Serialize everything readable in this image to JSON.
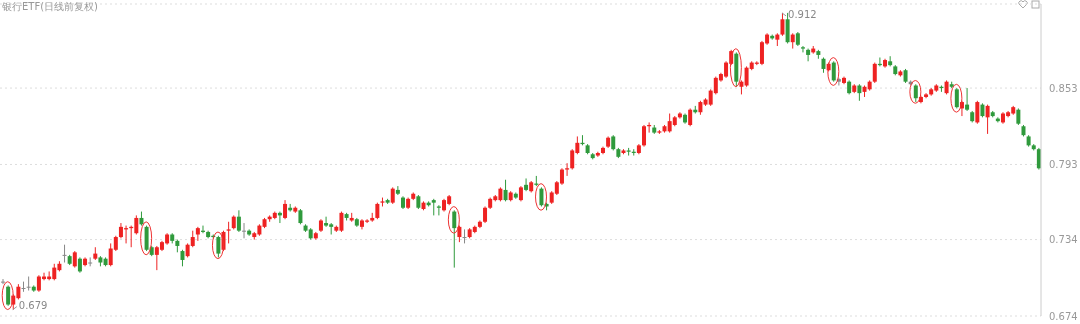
{
  "chart_data": {
    "type": "candlestick",
    "title": "银行ETF(日线前复权)",
    "categories": [
      null,
      null,
      null,
      null,
      null,
      null,
      null,
      null,
      null,
      null,
      null,
      null,
      null,
      null,
      null,
      null,
      null,
      null,
      null,
      null,
      null,
      null,
      null,
      null,
      null,
      null,
      null,
      null,
      null,
      null,
      null,
      null,
      null,
      null,
      null,
      null,
      null,
      null,
      null,
      null,
      null,
      null,
      null,
      null,
      null,
      null,
      null,
      null,
      null,
      null,
      null,
      null,
      null,
      null,
      null,
      null,
      null,
      null,
      null,
      null,
      null,
      null,
      null,
      null,
      null,
      null,
      null,
      null,
      null,
      null,
      null,
      null,
      null,
      null,
      null,
      null,
      null,
      null,
      null,
      null,
      null,
      null,
      null,
      null,
      null,
      null,
      null,
      null,
      null,
      null,
      null,
      null,
      null,
      null,
      null,
      null,
      null,
      null,
      null,
      null,
      null,
      null,
      null,
      null,
      null,
      null,
      null,
      null,
      null,
      null,
      null,
      null,
      null,
      null,
      null,
      null,
      null,
      null,
      null,
      null,
      null,
      null,
      null,
      null,
      null,
      null,
      null,
      null,
      null,
      null,
      null,
      null,
      null,
      null,
      null,
      null,
      null,
      null,
      null,
      null,
      null,
      null,
      null,
      null,
      null,
      null,
      null,
      null,
      null,
      null,
      null,
      null,
      null,
      null,
      null,
      null,
      null,
      null,
      null,
      null,
      null,
      null,
      null,
      null,
      null,
      null,
      null,
      null,
      null,
      null,
      null,
      null,
      null,
      null,
      null,
      null,
      null,
      null,
      null,
      null,
      null,
      null,
      null,
      null,
      null,
      null,
      null,
      null,
      null,
      null,
      null,
      null,
      null,
      null,
      null,
      null,
      null,
      null,
      null,
      null,
      null,
      null,
      null
    ],
    "ohlc": [
      [
        0.701,
        0.703,
        0.699,
        0.701
      ],
      [
        0.697,
        0.698,
        0.682,
        0.683
      ],
      [
        0.683,
        0.691,
        0.679,
        0.69
      ],
      [
        0.688,
        0.699,
        0.687,
        0.697
      ],
      [
        0.696,
        0.701,
        0.693,
        0.696
      ],
      [
        0.697,
        0.705,
        0.694,
        0.697
      ],
      [
        0.697,
        0.698,
        0.693,
        0.694
      ],
      [
        0.694,
        0.706,
        0.693,
        0.705
      ],
      [
        0.703,
        0.708,
        0.702,
        0.705
      ],
      [
        0.703,
        0.709,
        0.702,
        0.705
      ],
      [
        0.703,
        0.715,
        0.702,
        0.712
      ],
      [
        0.71,
        0.717,
        0.709,
        0.715
      ],
      [
        0.722,
        0.73,
        0.716,
        0.722
      ],
      [
        0.721,
        0.722,
        0.714,
        0.715
      ],
      [
        0.713,
        0.725,
        0.712,
        0.724
      ],
      [
        0.719,
        0.72,
        0.708,
        0.709
      ],
      [
        0.714,
        0.72,
        0.713,
        0.719
      ],
      [
        0.716,
        0.72,
        0.713,
        0.716
      ],
      [
        0.719,
        0.728,
        0.718,
        0.723
      ],
      [
        0.72,
        0.721,
        0.713,
        0.716
      ],
      [
        0.719,
        0.72,
        0.713,
        0.714
      ],
      [
        0.714,
        0.731,
        0.713,
        0.727
      ],
      [
        0.726,
        0.737,
        0.725,
        0.736
      ],
      [
        0.736,
        0.747,
        0.735,
        0.744
      ],
      [
        0.742,
        0.745,
        0.731,
        0.743
      ],
      [
        0.743,
        0.745,
        0.728,
        0.744
      ],
      [
        0.739,
        0.753,
        0.738,
        0.751
      ],
      [
        0.751,
        0.756,
        0.745,
        0.746
      ],
      [
        0.744,
        0.745,
        0.725,
        0.726
      ],
      [
        0.728,
        0.729,
        0.721,
        0.722
      ],
      [
        0.722,
        0.729,
        0.71,
        0.728
      ],
      [
        0.726,
        0.733,
        0.725,
        0.732
      ],
      [
        0.731,
        0.739,
        0.73,
        0.738
      ],
      [
        0.738,
        0.739,
        0.731,
        0.733
      ],
      [
        0.733,
        0.734,
        0.724,
        0.729
      ],
      [
        0.725,
        0.726,
        0.713,
        0.718
      ],
      [
        0.721,
        0.731,
        0.72,
        0.73
      ],
      [
        0.729,
        0.741,
        0.728,
        0.736
      ],
      [
        0.738,
        0.744,
        0.733,
        0.743
      ],
      [
        0.741,
        0.745,
        0.739,
        0.74
      ],
      [
        0.74,
        0.741,
        0.735,
        0.736
      ],
      [
        0.737,
        0.738,
        0.735,
        0.736
      ],
      [
        0.736,
        0.737,
        0.72,
        0.723
      ],
      [
        0.726,
        0.741,
        0.725,
        0.74
      ],
      [
        0.741,
        0.748,
        0.731,
        0.742
      ],
      [
        0.743,
        0.753,
        0.742,
        0.752
      ],
      [
        0.752,
        0.757,
        0.74,
        0.741
      ],
      [
        0.741,
        0.747,
        0.735,
        0.741
      ],
      [
        0.741,
        0.742,
        0.737,
        0.738
      ],
      [
        0.736,
        0.74,
        0.734,
        0.739
      ],
      [
        0.738,
        0.746,
        0.737,
        0.745
      ],
      [
        0.744,
        0.751,
        0.743,
        0.75
      ],
      [
        0.75,
        0.753,
        0.748,
        0.752
      ],
      [
        0.751,
        0.756,
        0.75,
        0.755
      ],
      [
        0.755,
        0.756,
        0.747,
        0.753
      ],
      [
        0.751,
        0.765,
        0.75,
        0.762
      ],
      [
        0.759,
        0.762,
        0.756,
        0.757
      ],
      [
        0.756,
        0.76,
        0.755,
        0.759
      ],
      [
        0.757,
        0.758,
        0.746,
        0.747
      ],
      [
        0.745,
        0.746,
        0.74,
        0.741
      ],
      [
        0.742,
        0.743,
        0.734,
        0.735
      ],
      [
        0.735,
        0.74,
        0.734,
        0.739
      ],
      [
        0.741,
        0.75,
        0.74,
        0.749
      ],
      [
        0.747,
        0.752,
        0.744,
        0.745
      ],
      [
        0.746,
        0.747,
        0.738,
        0.744
      ],
      [
        0.741,
        0.745,
        0.74,
        0.744
      ],
      [
        0.741,
        0.756,
        0.74,
        0.755
      ],
      [
        0.754,
        0.755,
        0.749,
        0.751
      ],
      [
        0.749,
        0.755,
        0.748,
        0.751
      ],
      [
        0.75,
        0.751,
        0.744,
        0.745
      ],
      [
        0.744,
        0.75,
        0.742,
        0.749
      ],
      [
        0.748,
        0.75,
        0.747,
        0.749
      ],
      [
        0.749,
        0.755,
        0.748,
        0.751
      ],
      [
        0.751,
        0.763,
        0.75,
        0.762
      ],
      [
        0.763,
        0.767,
        0.76,
        0.764
      ],
      [
        0.765,
        0.766,
        0.762,
        0.763
      ],
      [
        0.763,
        0.775,
        0.762,
        0.774
      ],
      [
        0.773,
        0.776,
        0.769,
        0.77
      ],
      [
        0.767,
        0.768,
        0.758,
        0.759
      ],
      [
        0.759,
        0.767,
        0.758,
        0.766
      ],
      [
        0.766,
        0.771,
        0.765,
        0.77
      ],
      [
        0.768,
        0.769,
        0.758,
        0.759
      ],
      [
        0.758,
        0.764,
        0.757,
        0.763
      ],
      [
        0.763,
        0.764,
        0.76,
        0.761
      ],
      [
        0.765,
        0.766,
        0.753,
        0.763
      ],
      [
        0.76,
        0.761,
        0.753,
        0.759
      ],
      [
        0.757,
        0.766,
        0.756,
        0.765
      ],
      [
        0.762,
        0.769,
        0.761,
        0.768
      ],
      [
        0.756,
        0.757,
        0.712,
        0.743
      ],
      [
        0.736,
        0.745,
        0.732,
        0.744
      ],
      [
        0.736,
        0.742,
        0.731,
        0.736
      ],
      [
        0.736,
        0.743,
        0.735,
        0.742
      ],
      [
        0.74,
        0.745,
        0.739,
        0.744
      ],
      [
        0.744,
        0.749,
        0.743,
        0.748
      ],
      [
        0.748,
        0.76,
        0.747,
        0.759
      ],
      [
        0.759,
        0.767,
        0.758,
        0.766
      ],
      [
        0.765,
        0.769,
        0.764,
        0.768
      ],
      [
        0.765,
        0.775,
        0.764,
        0.774
      ],
      [
        0.773,
        0.781,
        0.764,
        0.765
      ],
      [
        0.765,
        0.772,
        0.764,
        0.771
      ],
      [
        0.77,
        0.771,
        0.766,
        0.767
      ],
      [
        0.765,
        0.776,
        0.764,
        0.775
      ],
      [
        0.777,
        0.782,
        0.772,
        0.773
      ],
      [
        0.772,
        0.78,
        0.771,
        0.779
      ],
      [
        0.778,
        0.784,
        0.776,
        0.777
      ],
      [
        0.774,
        0.775,
        0.76,
        0.761
      ],
      [
        0.762,
        0.763,
        0.757,
        0.76
      ],
      [
        0.763,
        0.772,
        0.762,
        0.771
      ],
      [
        0.77,
        0.78,
        0.769,
        0.779
      ],
      [
        0.778,
        0.79,
        0.777,
        0.789
      ],
      [
        0.789,
        0.794,
        0.784,
        0.79
      ],
      [
        0.79,
        0.805,
        0.789,
        0.804
      ],
      [
        0.802,
        0.815,
        0.801,
        0.81
      ],
      [
        0.81,
        0.816,
        0.808,
        0.809
      ],
      [
        0.808,
        0.809,
        0.801,
        0.802
      ],
      [
        0.801,
        0.802,
        0.797,
        0.798
      ],
      [
        0.8,
        0.803,
        0.799,
        0.802
      ],
      [
        0.802,
        0.807,
        0.801,
        0.806
      ],
      [
        0.807,
        0.815,
        0.806,
        0.814
      ],
      [
        0.815,
        0.816,
        0.804,
        0.805
      ],
      [
        0.805,
        0.806,
        0.798,
        0.799
      ],
      [
        0.802,
        0.805,
        0.801,
        0.804
      ],
      [
        0.804,
        0.806,
        0.8,
        0.803
      ],
      [
        0.803,
        0.805,
        0.8,
        0.802
      ],
      [
        0.802,
        0.809,
        0.801,
        0.808
      ],
      [
        0.808,
        0.824,
        0.807,
        0.823
      ],
      [
        0.823,
        0.826,
        0.818,
        0.824
      ],
      [
        0.822,
        0.824,
        0.817,
        0.818
      ],
      [
        0.818,
        0.82,
        0.817,
        0.819
      ],
      [
        0.819,
        0.824,
        0.818,
        0.823
      ],
      [
        0.819,
        0.833,
        0.818,
        0.827
      ],
      [
        0.824,
        0.831,
        0.823,
        0.83
      ],
      [
        0.83,
        0.834,
        0.829,
        0.833
      ],
      [
        0.832,
        0.833,
        0.825,
        0.826
      ],
      [
        0.824,
        0.837,
        0.823,
        0.836
      ],
      [
        0.836,
        0.839,
        0.833,
        0.834
      ],
      [
        0.834,
        0.843,
        0.832,
        0.842
      ],
      [
        0.84,
        0.845,
        0.839,
        0.844
      ],
      [
        0.84,
        0.852,
        0.839,
        0.851
      ],
      [
        0.849,
        0.862,
        0.848,
        0.861
      ],
      [
        0.859,
        0.865,
        0.858,
        0.864
      ],
      [
        0.862,
        0.874,
        0.861,
        0.873
      ],
      [
        0.872,
        0.883,
        0.871,
        0.882
      ],
      [
        0.88,
        0.881,
        0.854,
        0.858
      ],
      [
        0.854,
        0.859,
        0.848,
        0.858
      ],
      [
        0.855,
        0.87,
        0.854,
        0.869
      ],
      [
        0.868,
        0.874,
        0.867,
        0.873
      ],
      [
        0.872,
        0.874,
        0.871,
        0.873
      ],
      [
        0.872,
        0.89,
        0.871,
        0.889
      ],
      [
        0.888,
        0.896,
        0.887,
        0.895
      ],
      [
        0.894,
        0.895,
        0.891,
        0.892
      ],
      [
        0.891,
        0.896,
        0.886,
        0.895
      ],
      [
        0.895,
        0.912,
        0.894,
        0.907
      ],
      [
        0.907,
        0.912,
        0.888,
        0.889
      ],
      [
        0.889,
        0.896,
        0.884,
        0.895
      ],
      [
        0.896,
        0.897,
        0.886,
        0.887
      ],
      [
        0.885,
        0.886,
        0.881,
        0.884
      ],
      [
        0.883,
        0.884,
        0.874,
        0.879
      ],
      [
        0.881,
        0.886,
        0.88,
        0.884
      ],
      [
        0.882,
        0.883,
        0.876,
        0.879
      ],
      [
        0.876,
        0.877,
        0.865,
        0.868
      ],
      [
        0.867,
        0.873,
        0.866,
        0.872
      ],
      [
        0.873,
        0.874,
        0.858,
        0.859
      ],
      [
        0.86,
        0.861,
        0.855,
        0.858
      ],
      [
        0.857,
        0.862,
        0.856,
        0.861
      ],
      [
        0.858,
        0.859,
        0.848,
        0.849
      ],
      [
        0.85,
        0.856,
        0.849,
        0.855
      ],
      [
        0.855,
        0.856,
        0.843,
        0.849
      ],
      [
        0.85,
        0.855,
        0.846,
        0.854
      ],
      [
        0.852,
        0.859,
        0.851,
        0.858
      ],
      [
        0.858,
        0.873,
        0.857,
        0.872
      ],
      [
        0.872,
        0.877,
        0.87,
        0.871
      ],
      [
        0.87,
        0.876,
        0.869,
        0.875
      ],
      [
        0.874,
        0.878,
        0.87,
        0.871
      ],
      [
        0.87,
        0.871,
        0.863,
        0.864
      ],
      [
        0.863,
        0.867,
        0.862,
        0.866
      ],
      [
        0.867,
        0.868,
        0.857,
        0.858
      ],
      [
        0.858,
        0.859,
        0.855,
        0.856
      ],
      [
        0.855,
        0.856,
        0.842,
        0.845
      ],
      [
        0.842,
        0.847,
        0.841,
        0.846
      ],
      [
        0.846,
        0.849,
        0.845,
        0.848
      ],
      [
        0.848,
        0.853,
        0.847,
        0.852
      ],
      [
        0.851,
        0.856,
        0.85,
        0.855
      ],
      [
        0.854,
        0.855,
        0.85,
        0.853
      ],
      [
        0.849,
        0.859,
        0.848,
        0.858
      ],
      [
        0.856,
        0.858,
        0.853,
        0.854
      ],
      [
        0.852,
        0.853,
        0.837,
        0.838
      ],
      [
        0.837,
        0.843,
        0.831,
        0.842
      ],
      [
        0.84,
        0.853,
        0.835,
        0.836
      ],
      [
        0.834,
        0.835,
        0.826,
        0.827
      ],
      [
        0.826,
        0.843,
        0.825,
        0.842
      ],
      [
        0.84,
        0.841,
        0.83,
        0.831
      ],
      [
        0.83,
        0.84,
        0.817,
        0.839
      ],
      [
        0.834,
        0.835,
        0.83,
        0.831
      ],
      [
        0.829,
        0.83,
        0.826,
        0.827
      ],
      [
        0.826,
        0.834,
        0.825,
        0.833
      ],
      [
        0.831,
        0.835,
        0.83,
        0.834
      ],
      [
        0.833,
        0.839,
        0.832,
        0.838
      ],
      [
        0.836,
        0.837,
        0.824,
        0.825
      ],
      [
        0.823,
        0.824,
        0.815,
        0.816
      ],
      [
        0.815,
        0.816,
        0.807,
        0.808
      ],
      [
        0.808,
        0.809,
        0.804,
        0.805
      ],
      [
        0.805,
        0.806,
        0.789,
        0.79
      ]
    ],
    "colors": [
      "#888888",
      "#2f9a3c",
      "#ee2222",
      "#ee2222",
      "#888888",
      "#888888",
      "#2f9a3c",
      "#ee2222",
      "#ee2222",
      "#ee2222",
      "#ee2222",
      "#ee2222",
      "#888888",
      "#2f9a3c",
      "#ee2222",
      "#2f9a3c",
      "#ee2222",
      "#888888",
      "#ee2222",
      "#2f9a3c",
      "#2f9a3c",
      "#ee2222",
      "#ee2222",
      "#ee2222",
      "#ee2222",
      "#ee2222",
      "#ee2222",
      "#2f9a3c",
      "#2f9a3c",
      "#2f9a3c",
      "#ee2222",
      "#ee2222",
      "#ee2222",
      "#2f9a3c",
      "#2f9a3c",
      "#2f9a3c",
      "#ee2222",
      "#ee2222",
      "#ee2222",
      "#2f9a3c",
      "#2f9a3c",
      "#2f9a3c",
      "#2f9a3c",
      "#ee2222",
      "#ee2222",
      "#ee2222",
      "#2f9a3c",
      "#888888",
      "#2f9a3c",
      "#ee2222",
      "#ee2222",
      "#ee2222",
      "#ee2222",
      "#ee2222",
      "#2f9a3c",
      "#ee2222",
      "#2f9a3c",
      "#ee2222",
      "#2f9a3c",
      "#2f9a3c",
      "#2f9a3c",
      "#ee2222",
      "#ee2222",
      "#2f9a3c",
      "#2f9a3c",
      "#ee2222",
      "#ee2222",
      "#2f9a3c",
      "#ee2222",
      "#2f9a3c",
      "#ee2222",
      "#ee2222",
      "#ee2222",
      "#ee2222",
      "#ee2222",
      "#2f9a3c",
      "#ee2222",
      "#2f9a3c",
      "#2f9a3c",
      "#ee2222",
      "#ee2222",
      "#2f9a3c",
      "#ee2222",
      "#2f9a3c",
      "#2f9a3c",
      "#2f9a3c",
      "#ee2222",
      "#ee2222",
      "#2f9a3c",
      "#ee2222",
      "#888888",
      "#ee2222",
      "#ee2222",
      "#ee2222",
      "#ee2222",
      "#ee2222",
      "#ee2222",
      "#ee2222",
      "#2f9a3c",
      "#ee2222",
      "#2f9a3c",
      "#ee2222",
      "#2f9a3c",
      "#ee2222",
      "#2f9a3c",
      "#2f9a3c",
      "#2f9a3c",
      "#ee2222",
      "#ee2222",
      "#ee2222",
      "#ee2222",
      "#ee2222",
      "#ee2222",
      "#2f9a3c",
      "#2f9a3c",
      "#2f9a3c",
      "#ee2222",
      "#ee2222",
      "#ee2222",
      "#2f9a3c",
      "#2f9a3c",
      "#ee2222",
      "#2f9a3c",
      "#2f9a3c",
      "#ee2222",
      "#ee2222",
      "#ee2222",
      "#2f9a3c",
      "#ee2222",
      "#ee2222",
      "#ee2222",
      "#ee2222",
      "#ee2222",
      "#2f9a3c",
      "#ee2222",
      "#2f9a3c",
      "#ee2222",
      "#ee2222",
      "#ee2222",
      "#ee2222",
      "#ee2222",
      "#ee2222",
      "#ee2222",
      "#2f9a3c",
      "#ee2222",
      "#ee2222",
      "#ee2222",
      "#ee2222",
      "#ee2222",
      "#ee2222",
      "#2f9a3c",
      "#ee2222",
      "#ee2222",
      "#2f9a3c",
      "#ee2222",
      "#2f9a3c",
      "#2f9a3c",
      "#2f9a3c",
      "#ee2222",
      "#2f9a3c",
      "#2f9a3c",
      "#ee2222",
      "#2f9a3c",
      "#888888",
      "#ee2222",
      "#2f9a3c",
      "#ee2222",
      "#2f9a3c",
      "#ee2222",
      "#ee2222",
      "#ee2222",
      "#2f9a3c",
      "#ee2222",
      "#2f9a3c",
      "#2f9a3c",
      "#ee2222",
      "#2f9a3c",
      "#888888",
      "#2f9a3c",
      "#ee2222",
      "#ee2222",
      "#ee2222",
      "#ee2222",
      "#2f9a3c",
      "#ee2222",
      "#2f9a3c",
      "#2f9a3c",
      "#ee2222",
      "#2f9a3c",
      "#2f9a3c",
      "#ee2222",
      "#2f9a3c",
      "#ee2222",
      "#2f9a3c",
      "#2f9a3c",
      "#ee2222",
      "#ee2222",
      "#ee2222",
      "#2f9a3c",
      "#2f9a3c",
      "#2f9a3c",
      "#2f9a3c",
      "#2f9a3c"
    ],
    "ylim": [
      0.674,
      0.919
    ],
    "yticks": [
      0.674,
      0.734,
      0.793,
      0.853
    ],
    "grid": "y",
    "tick_labels": "y",
    "annotations": [
      "0.912",
      "0.679"
    ]
  }
}
